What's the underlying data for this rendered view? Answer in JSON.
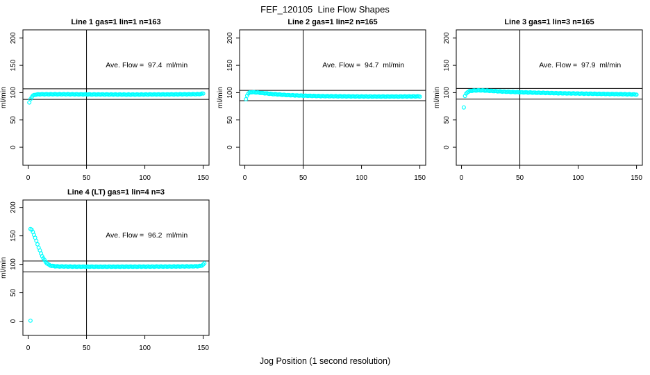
{
  "page": {
    "title": "FEF_120105  Line Flow Shapes",
    "xlabel": "Jog Position (1 second resolution)"
  },
  "marker": {
    "shape": "open-circle",
    "color": "#00FFFF"
  },
  "chart_data": [
    {
      "type": "scatter",
      "title": "Line 1 gas=1 lin=1 n=163",
      "annotation": "Ave. Flow =  97.4  ml/min",
      "ave_flow_ml_min": 97.4,
      "n_points": 163,
      "ylabel": "ml/min",
      "x_ticks": [
        0,
        50,
        100,
        150
      ],
      "y_ticks": [
        0,
        50,
        100,
        150,
        200
      ],
      "xlim": [
        -4.5,
        155
      ],
      "ylim": [
        -33,
        215
      ],
      "vline_x": 50,
      "hlines_y": [
        87.7,
        107.1
      ],
      "x_start": 2,
      "x_end": 150,
      "series_keypoints": [
        [
          2,
          88
        ],
        [
          3,
          92
        ],
        [
          4,
          94.5
        ],
        [
          6,
          96.2
        ],
        [
          10,
          97
        ],
        [
          30,
          97.1
        ],
        [
          60,
          96.7
        ],
        [
          90,
          96.5
        ],
        [
          120,
          96.8
        ],
        [
          140,
          97.1
        ],
        [
          146,
          97.3
        ],
        [
          148,
          97.6
        ],
        [
          150,
          98.6
        ]
      ],
      "outlier_points": [
        [
          1,
          82
        ]
      ]
    },
    {
      "type": "scatter",
      "title": "Line 2 gas=1 lin=2 n=165",
      "annotation": "Ave. Flow =  94.7  ml/min",
      "ave_flow_ml_min": 94.7,
      "n_points": 165,
      "ylabel": "ml/min",
      "x_ticks": [
        0,
        50,
        100,
        150
      ],
      "y_ticks": [
        0,
        50,
        100,
        150,
        200
      ],
      "xlim": [
        -4.5,
        155
      ],
      "ylim": [
        -33,
        215
      ],
      "vline_x": 50,
      "hlines_y": [
        85.2,
        104.2
      ],
      "x_start": 2,
      "x_end": 150,
      "series_keypoints": [
        [
          2,
          95
        ],
        [
          3,
          98.5
        ],
        [
          4,
          100.2
        ],
        [
          6,
          100.9
        ],
        [
          10,
          100.4
        ],
        [
          16,
          99.1
        ],
        [
          24,
          97.4
        ],
        [
          36,
          95.6
        ],
        [
          50,
          94.4
        ],
        [
          70,
          93.5
        ],
        [
          100,
          93
        ],
        [
          130,
          92.9
        ],
        [
          150,
          93.2
        ]
      ],
      "outlier_points": [
        [
          1,
          88
        ]
      ]
    },
    {
      "type": "scatter",
      "title": "Line 3 gas=1 lin=3 n=165",
      "annotation": "Ave. Flow =  97.9  ml/min",
      "ave_flow_ml_min": 97.9,
      "n_points": 165,
      "ylabel": "ml/min",
      "x_ticks": [
        0,
        50,
        100,
        150
      ],
      "y_ticks": [
        0,
        50,
        100,
        150,
        200
      ],
      "xlim": [
        -4.5,
        155
      ],
      "ylim": [
        -33,
        215
      ],
      "vline_x": 50,
      "hlines_y": [
        88.1,
        107.7
      ],
      "x_start": 3,
      "x_end": 150,
      "series_keypoints": [
        [
          3,
          93.5
        ],
        [
          4,
          98
        ],
        [
          5,
          100.8
        ],
        [
          7,
          102.8
        ],
        [
          10,
          103.8
        ],
        [
          16,
          104.2
        ],
        [
          24,
          103.3
        ],
        [
          34,
          102.1
        ],
        [
          48,
          100.9
        ],
        [
          64,
          99.9
        ],
        [
          84,
          98.9
        ],
        [
          104,
          98.2
        ],
        [
          124,
          97.6
        ],
        [
          140,
          97.1
        ],
        [
          150,
          96.7
        ]
      ],
      "outlier_points": [
        [
          2,
          73
        ]
      ]
    },
    {
      "type": "scatter",
      "title": "Line 4 (LT) gas=1 lin=4 n=3",
      "annotation": "Ave. Flow =  96.2  ml/min",
      "ave_flow_ml_min": 96.2,
      "n_points": 3,
      "ylabel": "ml/min",
      "x_ticks": [
        0,
        50,
        100,
        150
      ],
      "y_ticks": [
        0,
        50,
        100,
        150,
        200
      ],
      "xlim": [
        -4.5,
        155
      ],
      "ylim": [
        -25,
        213
      ],
      "vline_x": 50,
      "hlines_y": [
        86.6,
        105.8
      ],
      "x_start": 2,
      "x_end": 151,
      "series_keypoints": [
        [
          2,
          162
        ],
        [
          3,
          160.5
        ],
        [
          4,
          157
        ],
        [
          5,
          152
        ],
        [
          6,
          146.5
        ],
        [
          7,
          141
        ],
        [
          8,
          135.5
        ],
        [
          9,
          129.5
        ],
        [
          10,
          124
        ],
        [
          11,
          119
        ],
        [
          12,
          114.5
        ],
        [
          13,
          110.5
        ],
        [
          14,
          107
        ],
        [
          15,
          104.2
        ],
        [
          16,
          102
        ],
        [
          17,
          100.2
        ],
        [
          18,
          98.8
        ],
        [
          19,
          97.9
        ],
        [
          20,
          97.3
        ],
        [
          23,
          96.6
        ],
        [
          28,
          96.2
        ],
        [
          40,
          95.9
        ],
        [
          60,
          95.8
        ],
        [
          90,
          95.9
        ],
        [
          120,
          96.1
        ],
        [
          140,
          96.3
        ],
        [
          146,
          96.6
        ],
        [
          148,
          97.2
        ],
        [
          149,
          98
        ],
        [
          150,
          99.5
        ],
        [
          151,
          101.5
        ]
      ],
      "outlier_points": [
        [
          2,
          1
        ]
      ]
    }
  ]
}
